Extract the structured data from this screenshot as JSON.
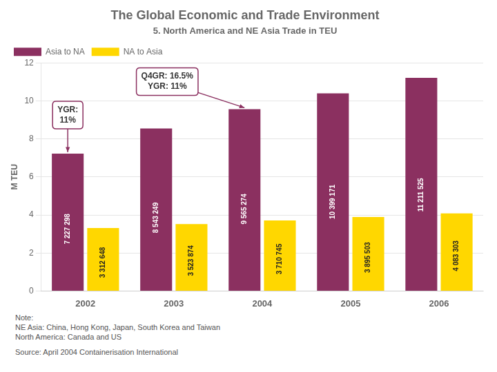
{
  "chart_data": {
    "type": "bar",
    "title": "The Global Economic and Trade Environment",
    "subtitle": "5. North America and NE Asia Trade in TEU",
    "ylabel": "M TEU",
    "categories": [
      "2002",
      "2003",
      "2004",
      "2005",
      "2006"
    ],
    "series": [
      {
        "name": "Asia to NA",
        "color": "#8B3060",
        "values": [
          7.227298,
          8.543249,
          9.565274,
          10.399171,
          11.211525
        ],
        "value_labels": [
          "7 227 298",
          "8 543 249",
          "9 565 274",
          "10 399 171",
          "11 211 525"
        ]
      },
      {
        "name": "NA to Asia",
        "color": "#FFD700",
        "values": [
          3.312648,
          3.523874,
          3.710745,
          3.895503,
          4.083303
        ],
        "value_labels": [
          "3 312 648",
          "3 523 874",
          "3 710 745",
          "3 895 503",
          "4 083 303"
        ]
      }
    ],
    "ylim": [
      0,
      12
    ],
    "yticks": [
      0,
      2,
      4,
      6,
      8,
      10,
      12
    ],
    "grid": true,
    "legend": "upper left",
    "data_labels": true,
    "annotations": [
      {
        "text": "YGR:\n11%",
        "category": "2002",
        "series": "Asia to NA"
      },
      {
        "text": "Q4GR: 16.5%\nYGR: 11%",
        "category": "2004",
        "series": "Asia to NA"
      }
    ],
    "notes": [
      "Note:",
      "NE Asia:  China, Hong Kong, Japan, South Korea and Taiwan",
      "North America:  Canada and US",
      "Source:  April 2004 Containerisation International"
    ]
  }
}
